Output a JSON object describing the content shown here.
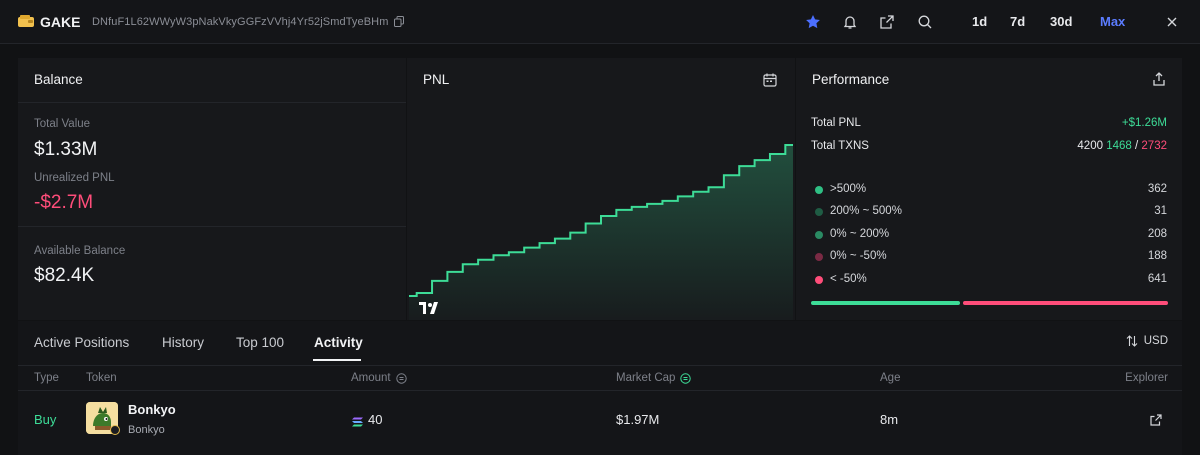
{
  "header": {
    "wallet_name": "GAKE",
    "address": "DNfuF1L62WWyW3pNakVkyGGFzVVhj4Yr52jSmdTyeBHm",
    "ranges": [
      "1d",
      "7d",
      "30d",
      "Max"
    ],
    "active_range": "Max",
    "accent": "#5b7cff"
  },
  "balance": {
    "title": "Balance",
    "total_value_label": "Total Value",
    "total_value": "$1.33M",
    "unrealized_label": "Unrealized PNL",
    "unrealized": "-$2.7M",
    "available_label": "Available Balance",
    "available": "$82.4K"
  },
  "pnl": {
    "title": "PNL",
    "watermark": "TV"
  },
  "chart_data": {
    "type": "area",
    "title": "PNL",
    "xlabel": "",
    "ylabel": "",
    "x": [
      0,
      4,
      8,
      12,
      16,
      20,
      24,
      28,
      32,
      36,
      40,
      44,
      48,
      52,
      56,
      60,
      64,
      68,
      72,
      76,
      80,
      84,
      88,
      92,
      96,
      100
    ],
    "values": [
      0,
      0.02,
      0.1,
      0.16,
      0.21,
      0.24,
      0.27,
      0.29,
      0.32,
      0.35,
      0.38,
      0.42,
      0.48,
      0.53,
      0.57,
      0.59,
      0.61,
      0.63,
      0.66,
      0.69,
      0.72,
      0.8,
      0.86,
      0.9,
      0.94,
      1.0
    ],
    "grid": false,
    "legend": "none",
    "line_color": "#3ddc97"
  },
  "performance": {
    "title": "Performance",
    "total_pnl_label": "Total PNL",
    "total_pnl": "+$1.26M",
    "total_txns_label": "Total TXNS",
    "total_txns": "4200",
    "txns_buy": "1468",
    "txns_sep": "/",
    "txns_sell": "2732",
    "distribution": [
      {
        "label": ">500%",
        "count": "362",
        "color": "#2fbf84"
      },
      {
        "label": "200% ~ 500%",
        "count": "31",
        "color": "#1f5c44"
      },
      {
        "label": "0% ~ 200%",
        "count": "208",
        "color": "#2a8a63"
      },
      {
        "label": "0% ~ -50%",
        "count": "188",
        "color": "#7a2a44"
      },
      {
        "label": "< -50%",
        "count": "641",
        "color": "#ff4d7a"
      }
    ]
  },
  "tabs": {
    "items": [
      "Active Positions",
      "History",
      "Top 100",
      "Activity"
    ],
    "active": "Activity",
    "currency_toggle": "USD"
  },
  "table": {
    "columns": [
      "Type",
      "Token",
      "Amount",
      "Market Cap",
      "Age",
      "Explorer"
    ],
    "rows": [
      {
        "type": "Buy",
        "token_name": "Bonkyo",
        "token_symbol": "Bonkyo",
        "amount": "40",
        "market_cap": "$1.97M",
        "age": "8m"
      }
    ]
  }
}
